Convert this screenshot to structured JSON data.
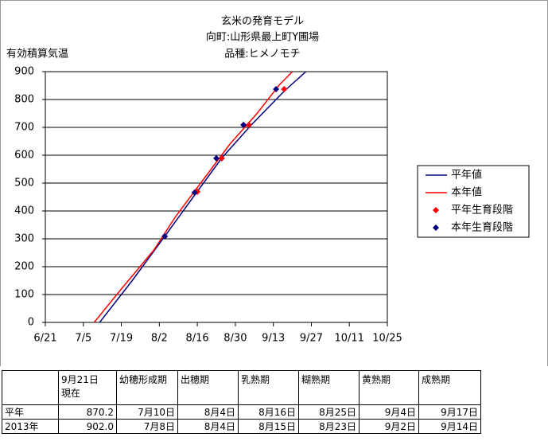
{
  "chart_data": {
    "type": "line",
    "title": "玄米の発育モデル",
    "subtitle": [
      "向町:山形県最上町Y圃場",
      "品種:ヒメノモチ"
    ],
    "y_label": "有効積算気温",
    "xlim": [
      172,
      298
    ],
    "xticks": [
      {
        "value": 172,
        "label": "6/21"
      },
      {
        "value": 186,
        "label": "7/5"
      },
      {
        "value": 200,
        "label": "7/19"
      },
      {
        "value": 214,
        "label": "8/2"
      },
      {
        "value": 228,
        "label": "8/16"
      },
      {
        "value": 242,
        "label": "8/30"
      },
      {
        "value": 256,
        "label": "9/13"
      },
      {
        "value": 270,
        "label": "9/27"
      },
      {
        "value": 284,
        "label": "10/11"
      },
      {
        "value": 298,
        "label": "10/25"
      }
    ],
    "ylim": [
      0,
      900
    ],
    "yticks": [
      0,
      100,
      200,
      300,
      400,
      500,
      600,
      700,
      800,
      900
    ],
    "grid": true,
    "legend": "right",
    "series": [
      {
        "name": "平年値",
        "kind": "line",
        "color": "#000080",
        "x": [
          192,
          204,
          216,
          228,
          237,
          248,
          260,
          268
        ],
        "values": [
          0,
          150,
          309,
          470,
          590,
          710,
          830,
          900
        ]
      },
      {
        "name": "本年値",
        "kind": "line",
        "color": "#ff0000",
        "x": [
          190,
          200,
          212,
          220,
          230,
          240,
          250,
          258,
          263
        ],
        "values": [
          0,
          120,
          260,
          380,
          510,
          640,
          750,
          850,
          900
        ]
      },
      {
        "name": "平年生育段階",
        "kind": "marker",
        "color": "#ff0000",
        "x": [
          216,
          228,
          237,
          247,
          260
        ],
        "values": [
          309,
          469,
          589,
          709,
          837
        ]
      },
      {
        "name": "本年生育段階",
        "kind": "marker",
        "color": "#000080",
        "x": [
          216,
          227,
          235,
          245,
          257
        ],
        "values": [
          309,
          466,
          589,
          709,
          837
        ]
      }
    ]
  },
  "table": {
    "header": [
      "",
      "9月21日\n現在",
      "幼穂形成期",
      "出穂期",
      "乳熟期",
      "糊熟期",
      "黄熟期",
      "成熟期"
    ],
    "rows": [
      [
        "平年",
        "870.2",
        "7月10日",
        "8月4日",
        "8月16日",
        "8月25日",
        "9月4日",
        "9月17日"
      ],
      [
        "2013年",
        "902.0",
        "7月8日",
        "8月4日",
        "8月15日",
        "8月23日",
        "9月2日",
        "9月14日"
      ]
    ]
  }
}
